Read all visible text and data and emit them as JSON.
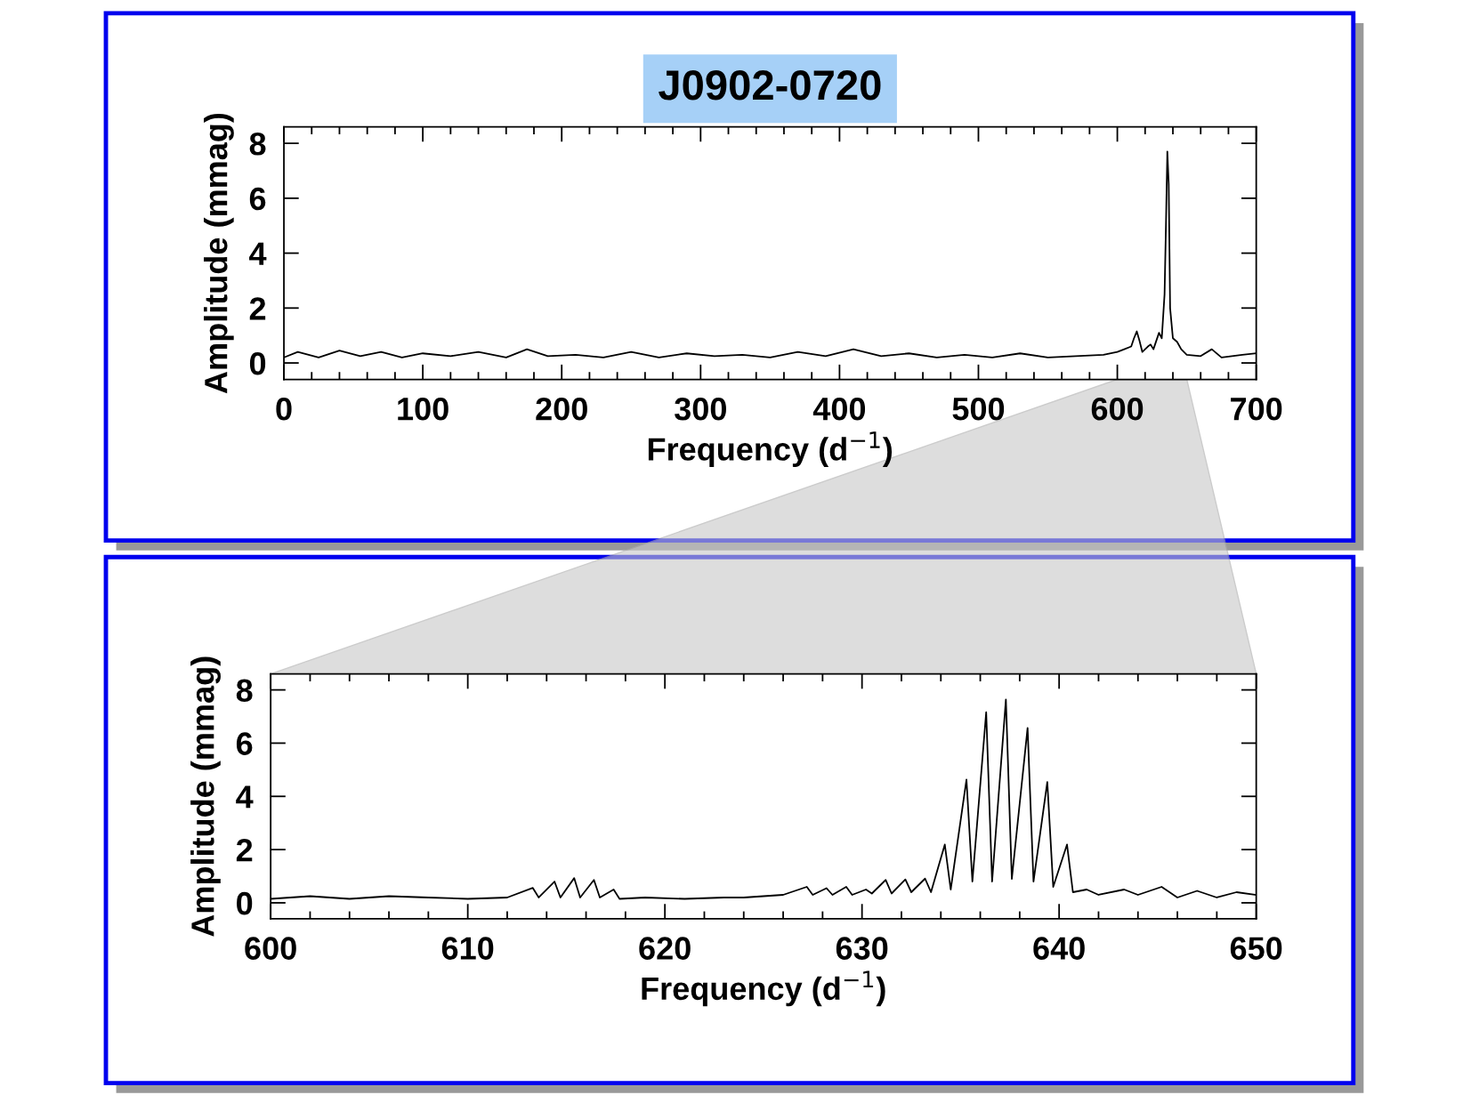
{
  "chart_data": [
    {
      "type": "line",
      "title": "J0902-0720",
      "xlabel": "Frequency (d$^{−1}$)",
      "ylabel": "Amplitude (mmag)",
      "color": "#000000",
      "x": [
        0,
        10,
        25,
        40,
        55,
        70,
        85,
        100,
        120,
        140,
        160,
        175,
        190,
        210,
        230,
        250,
        270,
        290,
        310,
        330,
        350,
        370,
        390,
        410,
        430,
        450,
        470,
        490,
        510,
        530,
        550,
        570,
        590,
        600,
        605,
        610,
        612,
        614,
        616,
        618,
        620,
        622,
        624,
        626,
        628,
        630,
        632,
        634,
        635,
        636,
        637,
        638,
        640,
        643,
        646,
        650,
        660,
        668,
        675,
        690,
        700
      ],
      "values": [
        0.2,
        0.4,
        0.2,
        0.45,
        0.25,
        0.4,
        0.2,
        0.35,
        0.25,
        0.4,
        0.2,
        0.5,
        0.25,
        0.3,
        0.2,
        0.4,
        0.2,
        0.35,
        0.25,
        0.3,
        0.2,
        0.4,
        0.25,
        0.5,
        0.25,
        0.35,
        0.2,
        0.3,
        0.2,
        0.35,
        0.2,
        0.25,
        0.3,
        0.4,
        0.5,
        0.6,
        0.9,
        1.15,
        0.8,
        0.4,
        0.5,
        0.6,
        0.67,
        0.5,
        0.8,
        1.1,
        0.9,
        2.5,
        5.0,
        7.7,
        6.5,
        2.0,
        0.9,
        0.77,
        0.5,
        0.3,
        0.25,
        0.5,
        0.2,
        0.3,
        0.35
      ],
      "xlim": [
        0,
        700
      ],
      "ylim": [
        -0.6,
        8.6
      ],
      "xticks": [
        0,
        100,
        200,
        300,
        400,
        500,
        600,
        700
      ],
      "yticks": [
        0,
        2,
        4,
        6,
        8
      ]
    },
    {
      "type": "line",
      "xlabel": "Frequency (d$^{−1}$)",
      "ylabel": "Amplitude (mmag)",
      "color": "#000000",
      "x": [
        600,
        602,
        604,
        606,
        608,
        610,
        612,
        613.3,
        613.6,
        614.4,
        614.7,
        615.4,
        615.7,
        616.4,
        616.7,
        617.4,
        617.7,
        619,
        621,
        623,
        624,
        625,
        626,
        627.2,
        627.5,
        628.2,
        628.5,
        629.2,
        629.5,
        630.2,
        630.5,
        631.2,
        631.5,
        632.2,
        632.5,
        633.2,
        633.5,
        634.2,
        634.5,
        635.3,
        635.6,
        636.3,
        636.6,
        637.3,
        637.6,
        638.4,
        638.7,
        639.4,
        639.7,
        640.4,
        640.7,
        641.4,
        642,
        643.3,
        644,
        645.2,
        646,
        647,
        648,
        649,
        650
      ],
      "values": [
        0.15,
        0.25,
        0.15,
        0.25,
        0.2,
        0.15,
        0.2,
        0.56,
        0.2,
        0.8,
        0.2,
        0.93,
        0.2,
        0.86,
        0.2,
        0.5,
        0.15,
        0.2,
        0.15,
        0.2,
        0.2,
        0.25,
        0.3,
        0.6,
        0.3,
        0.55,
        0.3,
        0.6,
        0.3,
        0.5,
        0.35,
        0.86,
        0.35,
        0.88,
        0.4,
        0.91,
        0.4,
        2.19,
        0.5,
        4.63,
        0.8,
        7.16,
        0.8,
        7.64,
        0.9,
        6.57,
        0.8,
        4.54,
        0.6,
        2.19,
        0.4,
        0.5,
        0.3,
        0.5,
        0.3,
        0.6,
        0.2,
        0.45,
        0.2,
        0.4,
        0.3
      ],
      "xlim": [
        600,
        650
      ],
      "ylim": [
        -0.6,
        8.6
      ],
      "xticks": [
        600,
        610,
        620,
        630,
        640,
        650
      ],
      "yticks": [
        0,
        2,
        4,
        6,
        8
      ]
    }
  ]
}
